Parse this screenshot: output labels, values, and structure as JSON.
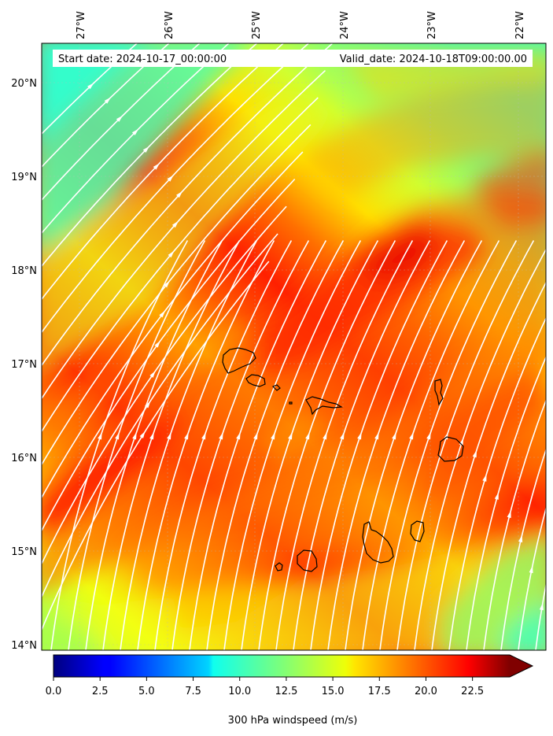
{
  "header": {
    "start_date": "Start date: 2024-10-17_00:00:00",
    "valid_date": "Valid_date: 2024-10-18T09:00:00.00"
  },
  "axes": {
    "lon_labels": [
      "27°W",
      "26°W",
      "25°W",
      "24°W",
      "23°W",
      "22°W"
    ],
    "lat_labels": [
      "20°N",
      "19°N",
      "18°N",
      "17°N",
      "16°N",
      "15°N",
      "14°N"
    ]
  },
  "colorbar": {
    "tick_labels": [
      "0.0",
      "2.5",
      "5.0",
      "7.5",
      "10.0",
      "12.5",
      "15.0",
      "17.5",
      "20.0",
      "22.5"
    ],
    "label": "300 hPa windspeed (m/s)",
    "range": [
      0,
      24.5
    ],
    "extend": "max"
  },
  "map": {
    "field": "300 hPa windspeed",
    "units": "m/s",
    "lon_range": [
      -27.4,
      -21.7
    ],
    "lat_range": [
      13.95,
      20.4
    ],
    "jet_core_max_ms": 24,
    "background_min_ms": 11,
    "streamline_color": "#ffffff",
    "coastline_color": "#000000",
    "region": "Cape Verde Islands"
  }
}
